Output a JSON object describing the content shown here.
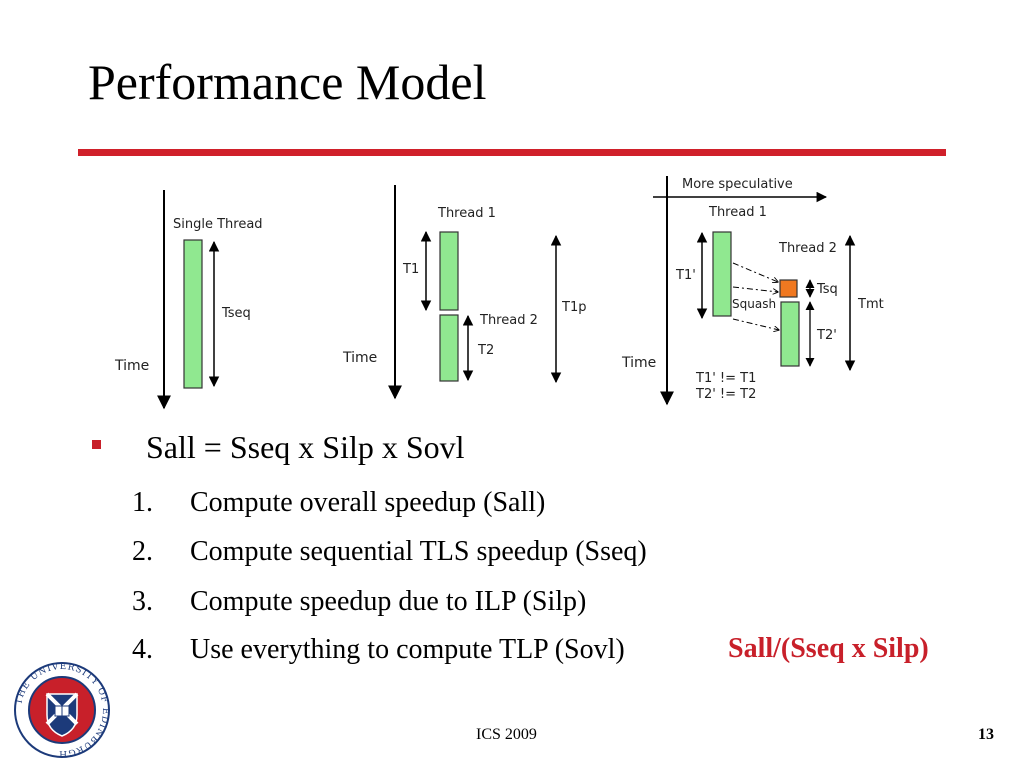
{
  "slide": {
    "title": "Performance Model",
    "accent_color": "#d0202a"
  },
  "diagram": {
    "single": {
      "header": "Single Thread",
      "length_label": "Tseq",
      "axis_label": "Time"
    },
    "parallel": {
      "thread1": "Thread 1",
      "thread2": "Thread 2",
      "t1": "T1",
      "t2": "T2",
      "total": "T1p",
      "axis_label": "Time"
    },
    "speculative": {
      "axis_top": "More speculative",
      "thread1": "Thread 1",
      "thread2": "Thread 2",
      "t1": "T1'",
      "t2": "T2'",
      "squash": "Squash",
      "tsq": "Tsq",
      "tmt": "Tmt",
      "note1": "T1' != T1",
      "note2": "T2' != T2",
      "axis_label": "Time"
    },
    "bar_color": "#90e890",
    "squash_color": "#f07820"
  },
  "content": {
    "main": "Sall = Sseq x Silp x Sovl",
    "items": [
      {
        "num": "1.",
        "text": "Compute overall speedup (Sall)"
      },
      {
        "num": "2.",
        "text": "Compute sequential TLS speedup (Sseq)"
      },
      {
        "num": "3.",
        "text": "Compute speedup due to ILP (Silp)"
      },
      {
        "num": "4.",
        "text": "Use everything to compute TLP (Sovl)"
      }
    ],
    "formula": "Sall/(Sseq x Silp)"
  },
  "footer": {
    "center": "ICS 2009",
    "page": "13"
  },
  "logo": {
    "text": "THE UNIVERSITY OF EDINBURGH"
  }
}
